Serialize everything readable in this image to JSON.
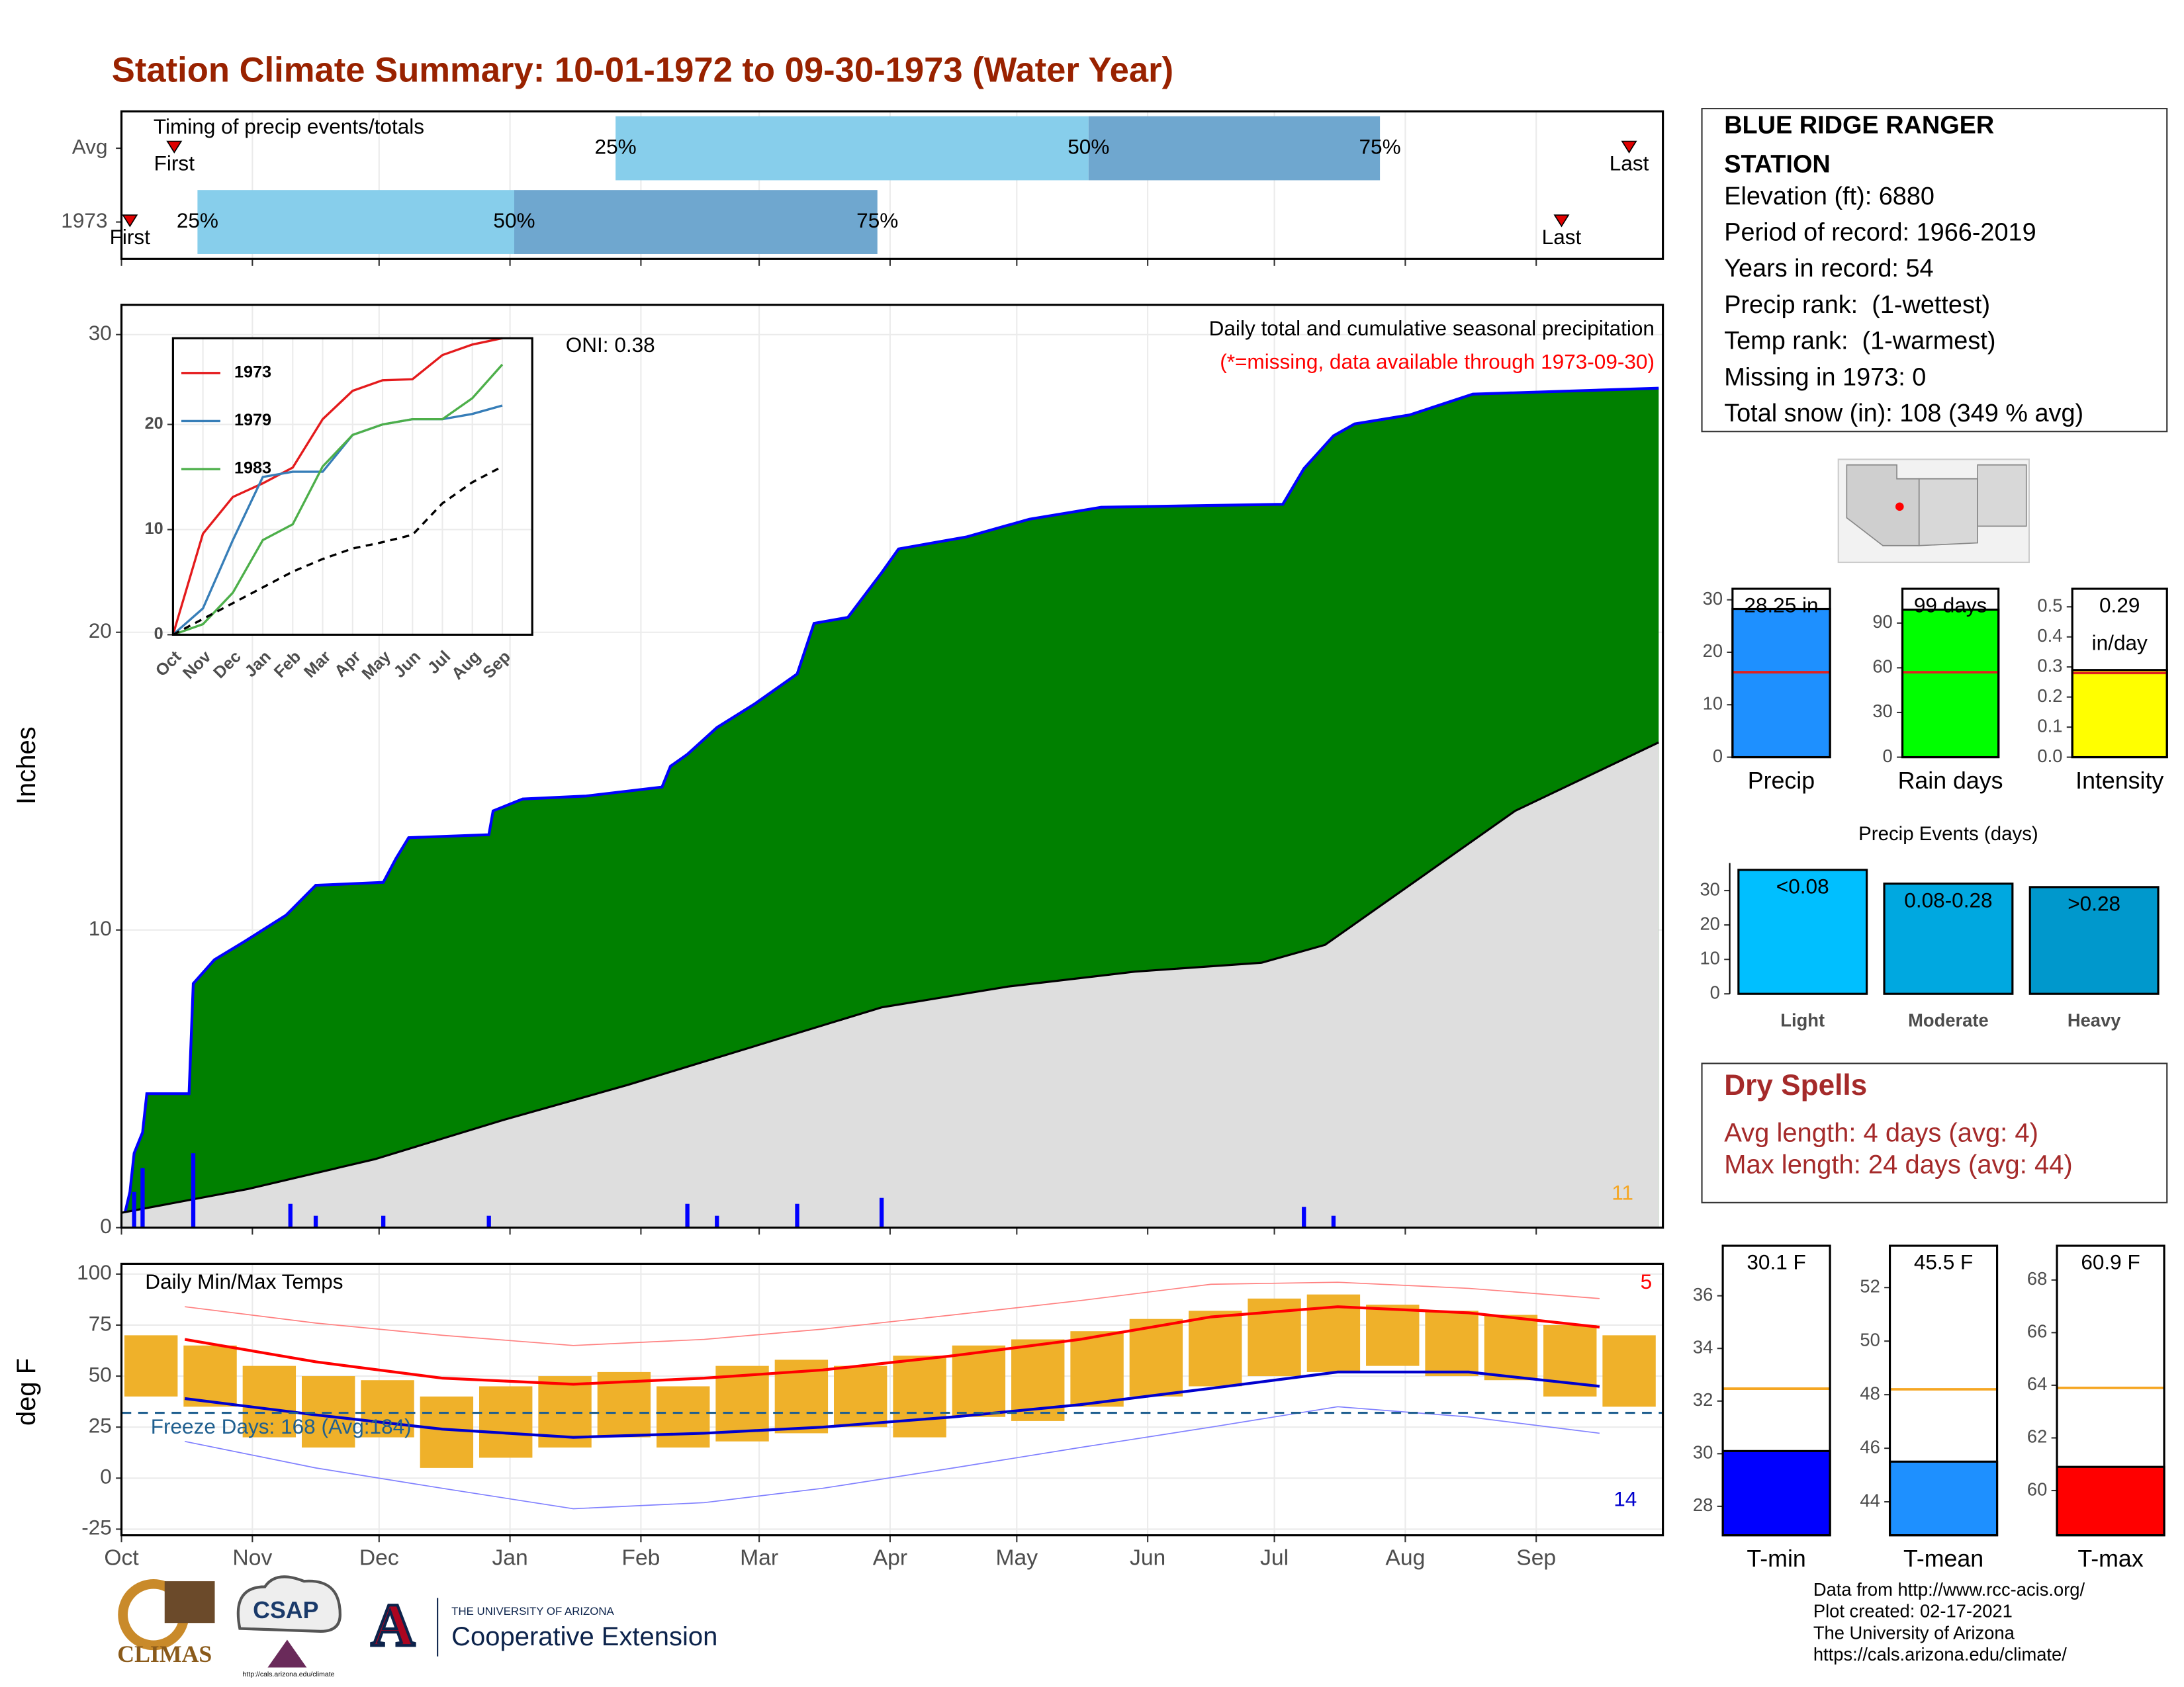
{
  "title": "Station Climate Summary: 10-01-1972 to 09-30-1973 (Water Year)",
  "station_info": {
    "title": [
      "BLUE RIDGE RANGER",
      "STATION"
    ],
    "lines": [
      "Elevation (ft): 6880",
      "Period of record: 1966-2019",
      "Years in record: 54",
      "Precip rank:  (1-wettest)",
      "Temp rank:  (1-warmest)",
      "Missing in 1973: 0",
      "Total snow (in): 108 (349 % avg)"
    ]
  },
  "dry_spells": {
    "title": "Dry Spells",
    "lines": [
      "Avg length: 4 days (avg: 4)",
      "Max length: 24 days (avg: 44)"
    ]
  },
  "footer": {
    "lines": [
      "Data from http://www.rcc-acis.org/",
      "Plot created: 02-17-2021",
      "The University of Arizona",
      "https://cals.arizona.edu/climate/"
    ]
  },
  "logos": {
    "climas": "CLIMAS",
    "csap": "CSAP",
    "csap_url": "http://cals.arizona.edu/climate",
    "ua_small": "THE UNIVERSITY OF ARIZONA",
    "ua_big": "Cooperative Extension",
    "ua_letter": "A"
  },
  "chart_data": [
    {
      "type": "timing",
      "title": "Timing of precip events/totals",
      "categories": [
        "Avg",
        "1973"
      ],
      "labels": [
        "First",
        "25%",
        "50%",
        "75%",
        "Last"
      ],
      "values": [
        [
          12.5,
          117,
          229,
          298,
          357
        ],
        [
          2,
          18,
          93,
          179,
          341
        ]
      ],
      "colors": [
        "#87ceeb",
        "#6fa7cf"
      ],
      "marker_color": "#e00000",
      "xlim": [
        0,
        365
      ]
    },
    {
      "type": "cumulative",
      "title": "Daily total and cumulative seasonal precipitation",
      "subtitle": "(*=missing, data available through 1973-09-30)",
      "ylabel": "Inches",
      "annotation": "ONI: 0.38",
      "corner_label": 11,
      "xlim": [
        0,
        365
      ],
      "ylim": [
        0,
        31
      ],
      "yticks": [
        0,
        10,
        20,
        30
      ],
      "grid": true,
      "series": [
        {
          "x": [
            0,
            2,
            3,
            5,
            6,
            16,
            17,
            22,
            29,
            39,
            46,
            62,
            65,
            68,
            87,
            88,
            95,
            110,
            128,
            130,
            134,
            141,
            150,
            160,
            164,
            172,
            180,
            184,
            200,
            215,
            232,
            275,
            280,
            287,
            292,
            305,
            320,
            364
          ],
          "values": [
            0,
            1.2,
            2.5,
            3.2,
            4.5,
            4.5,
            8.2,
            9.0,
            9.6,
            10.5,
            11.5,
            11.6,
            12.4,
            13.1,
            13.2,
            14.0,
            14.4,
            14.5,
            14.8,
            15.5,
            15.9,
            16.8,
            17.6,
            18.6,
            20.3,
            20.5,
            22.0,
            22.8,
            23.2,
            23.8,
            24.2,
            24.3,
            25.5,
            26.6,
            27.0,
            27.3,
            28.0,
            28.2
          ],
          "color": "#008000",
          "line_color": "#0000ff"
        },
        {
          "x": [
            0,
            30,
            60,
            90,
            120,
            150,
            180,
            210,
            240,
            270,
            285,
            300,
            330,
            364
          ],
          "values": [
            0.5,
            1.3,
            2.3,
            3.6,
            4.8,
            6.1,
            7.4,
            8.1,
            8.6,
            8.9,
            9.5,
            11.0,
            14.0,
            16.3
          ],
          "color": "#dedede",
          "line_color": "#000000"
        }
      ],
      "daily": {
        "x": [
          3,
          5,
          17,
          40,
          46,
          62,
          87,
          134,
          141,
          160,
          180,
          280,
          287
        ],
        "values": [
          1.2,
          2.0,
          2.5,
          0.8,
          0.4,
          0.4,
          0.4,
          0.8,
          0.4,
          0.8,
          1.0,
          0.7,
          0.4
        ],
        "color": "#0000ff"
      }
    },
    {
      "type": "line",
      "categories": [
        "Oct",
        "Nov",
        "Dec",
        "Jan",
        "Feb",
        "Mar",
        "Apr",
        "May",
        "Jun",
        "Jul",
        "Aug",
        "Sep"
      ],
      "xlim": [
        0,
        12
      ],
      "ylim": [
        0,
        28.2
      ],
      "yticks": [
        0,
        10,
        20
      ],
      "grid": true,
      "series": [
        {
          "name": "1973",
          "color": "#e41a1c",
          "values": [
            0,
            9.6,
            13.1,
            14.4,
            15.9,
            20.5,
            23.2,
            24.2,
            24.3,
            26.6,
            27.6,
            28.2
          ]
        },
        {
          "name": "1979",
          "color": "#377eb8",
          "values": [
            0,
            2.5,
            9,
            15,
            15.5,
            15.5,
            19,
            20,
            20.5,
            20.5,
            21,
            21.8
          ]
        },
        {
          "name": "1983",
          "color": "#4daf4a",
          "values": [
            0,
            1,
            4,
            9,
            10.5,
            16,
            19,
            20,
            20.5,
            20.5,
            22.5,
            25.7
          ]
        },
        {
          "color": "#000000",
          "dashed": true,
          "values": [
            0,
            1.5,
            3,
            4.5,
            6,
            7.2,
            8.2,
            8.8,
            9.5,
            12.5,
            14.5,
            16
          ]
        }
      ]
    },
    {
      "type": "gauge",
      "label": "Precip",
      "value": 28.25,
      "value_label": "28.25 in",
      "average": 16.2,
      "ylim": [
        0,
        32.1
      ],
      "yticks": [
        0,
        10,
        20,
        30
      ],
      "color": "#1e90ff",
      "average_color": "#e02020"
    },
    {
      "type": "gauge",
      "label": "Rain days",
      "value": 99,
      "value_label": "99 days",
      "average": 57,
      "ylim": [
        0,
        113
      ],
      "yticks": [
        0,
        30,
        60,
        90
      ],
      "color": "#00ff00",
      "average_color": "#e02020"
    },
    {
      "type": "gauge",
      "label": "Intensity",
      "value": 0.29,
      "value_label": "0.29",
      "unit": "in/day",
      "average": 0.28,
      "ylim": [
        0,
        0.56
      ],
      "yticks": [
        {
          "value": 0,
          "label": "0.0"
        },
        0.1,
        0.2,
        0.3,
        0.4,
        0.5
      ],
      "color": "#ffff00",
      "average_color": "#e02020"
    },
    {
      "type": "bar",
      "title": "Precip Events (days)",
      "categories": [
        "Light",
        "Moderate",
        "Heavy"
      ],
      "range_labels": [
        "<0.08",
        "0.08-0.28",
        ">0.28"
      ],
      "values": [
        36,
        32,
        31
      ],
      "colors": [
        "#00bfff",
        "#00a8e0",
        "#0098cc"
      ],
      "ylim": [
        0,
        38
      ],
      "yticks": [
        0,
        10,
        20,
        30
      ]
    },
    {
      "type": "temp",
      "title": "Daily Min/Max Temps",
      "ylabel": "deg F",
      "annotation": "Freeze Days: 168 (Avg:184)",
      "freeze": 32,
      "high_count": 5,
      "low_count": 14,
      "xlim": [
        0,
        365
      ],
      "ylim": [
        -28,
        105
      ],
      "yticks": [
        -25,
        0,
        25,
        50,
        75,
        100
      ],
      "grid": true,
      "xticks": [
        {
          "value": 0,
          "label": "Oct"
        },
        {
          "value": 31,
          "label": "Nov"
        },
        {
          "value": 61,
          "label": "Dec"
        },
        {
          "value": 92,
          "label": "Jan"
        },
        {
          "value": 123,
          "label": "Feb"
        },
        {
          "value": 151,
          "label": "Mar"
        },
        {
          "value": 182,
          "label": "Apr"
        },
        {
          "value": 212,
          "label": "May"
        },
        {
          "value": 243,
          "label": "Jun"
        },
        {
          "value": 273,
          "label": "Jul"
        },
        {
          "value": 304,
          "label": "Aug"
        },
        {
          "value": 335,
          "label": "Sep"
        }
      ],
      "daily": {
        "x": [
          7,
          21,
          35,
          49,
          63,
          77,
          91,
          105,
          119,
          133,
          147,
          161,
          175,
          189,
          203,
          217,
          231,
          245,
          259,
          273,
          287,
          301,
          315,
          329,
          343,
          357
        ],
        "low": [
          40,
          35,
          20,
          15,
          20,
          5,
          10,
          15,
          20,
          15,
          18,
          22,
          25,
          20,
          30,
          28,
          35,
          40,
          45,
          50,
          52,
          55,
          50,
          48,
          40,
          35
        ],
        "high": [
          70,
          65,
          55,
          50,
          48,
          40,
          45,
          50,
          52,
          45,
          55,
          58,
          55,
          60,
          65,
          68,
          72,
          78,
          82,
          88,
          90,
          85,
          82,
          80,
          75,
          70
        ],
        "color": "#efb12a"
      },
      "line_x": [
        15,
        46,
        76,
        107,
        138,
        166,
        197,
        227,
        258,
        288,
        319,
        350
      ],
      "series": [
        {
          "values": [
            84,
            76,
            70,
            65,
            68,
            73,
            80,
            87,
            95,
            96,
            93,
            88
          ],
          "color": "#ff8080",
          "width": 0.8
        },
        {
          "values": [
            18,
            5,
            -5,
            -15,
            -12,
            -5,
            5,
            15,
            25,
            35,
            30,
            22
          ],
          "color": "#8080ff",
          "width": 0.8
        },
        {
          "values": [
            68,
            57,
            49,
            46,
            49,
            53,
            60,
            68,
            79,
            84,
            81,
            74
          ],
          "color": "#ff0000",
          "width": 2
        },
        {
          "values": [
            39,
            31,
            24,
            20,
            22,
            25,
            30,
            36,
            44,
            52,
            52,
            45
          ],
          "color": "#0000cd",
          "width": 2
        }
      ]
    },
    {
      "type": "gauge",
      "label": "T-min",
      "value": 30.1,
      "value_label": "30.1 F",
      "average": 32.47,
      "ylim": [
        26.9,
        37.9
      ],
      "yticks": [
        28,
        30,
        32,
        34,
        36
      ],
      "color": "#0000ff",
      "average_color": "#f5a623"
    },
    {
      "type": "gauge",
      "label": "T-mean",
      "value": 45.5,
      "value_label": "45.5 F",
      "average": 48.2,
      "ylim": [
        42.75,
        53.56
      ],
      "yticks": [
        44,
        46,
        48,
        50,
        52
      ],
      "color": "#1e90ff",
      "average_color": "#f5a623"
    },
    {
      "type": "gauge",
      "label": "T-max",
      "value": 60.9,
      "value_label": "60.9 F",
      "average": 63.9,
      "ylim": [
        58.3,
        69.3
      ],
      "yticks": [
        60,
        62,
        64,
        66,
        68
      ],
      "color": "#ff0000",
      "average_color": "#f5a623"
    }
  ]
}
